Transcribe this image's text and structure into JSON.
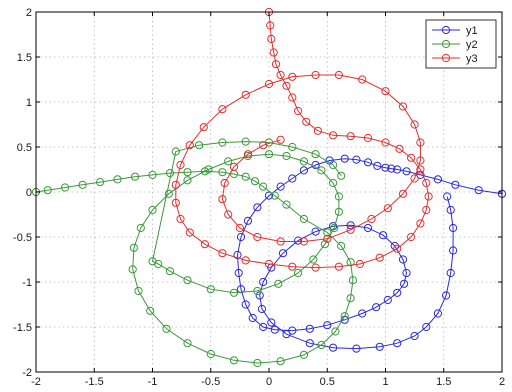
{
  "chart_data": {
    "type": "line",
    "title": "",
    "xlabel": "",
    "ylabel": "",
    "xlim": [
      -2,
      2
    ],
    "ylim": [
      -2,
      2
    ],
    "xticks": [
      -2,
      -1.5,
      -1,
      -0.5,
      0,
      0.5,
      1,
      1.5,
      2
    ],
    "yticks": [
      -2,
      -1.5,
      -1,
      -0.5,
      0,
      0.5,
      1,
      1.5,
      2
    ],
    "xtick_labels": [
      "-2",
      "-1.5",
      "-1",
      "-0.5",
      "0",
      "0.5",
      "1",
      "1.5",
      "2"
    ],
    "ytick_labels": [
      "-2",
      "-1.5",
      "-1",
      "-0.5",
      "0",
      "0.5",
      "1",
      "1.5",
      "2"
    ],
    "grid": true,
    "grid_style": "dotted",
    "legend_position": "top-right",
    "marker": "circle-open",
    "series": [
      {
        "name": "y1",
        "color": "#2b2bd6",
        "points": [
          [
            2.0,
            -0.02
          ],
          [
            1.8,
            0.02
          ],
          [
            1.6,
            0.08
          ],
          [
            1.45,
            0.14
          ],
          [
            1.3,
            0.19
          ],
          [
            1.18,
            0.23
          ],
          [
            1.1,
            0.25
          ],
          [
            1.05,
            0.26
          ],
          [
            1.0,
            0.27
          ],
          [
            0.93,
            0.29
          ],
          [
            0.85,
            0.33
          ],
          [
            0.75,
            0.36
          ],
          [
            0.65,
            0.37
          ],
          [
            0.52,
            0.35
          ],
          [
            0.4,
            0.3
          ],
          [
            0.3,
            0.24
          ],
          [
            0.2,
            0.15
          ],
          [
            0.1,
            0.06
          ],
          [
            0.0,
            -0.04
          ],
          [
            -0.1,
            -0.17
          ],
          [
            -0.18,
            -0.32
          ],
          [
            -0.24,
            -0.5
          ],
          [
            -0.27,
            -0.7
          ],
          [
            -0.26,
            -0.9
          ],
          [
            -0.24,
            -1.08
          ],
          [
            -0.2,
            -1.25
          ],
          [
            -0.14,
            -1.4
          ],
          [
            -0.05,
            -1.5
          ],
          [
            0.05,
            -1.53
          ],
          [
            0.2,
            -1.54
          ],
          [
            0.35,
            -1.52
          ],
          [
            0.5,
            -1.48
          ],
          [
            0.65,
            -1.42
          ],
          [
            0.8,
            -1.35
          ],
          [
            0.92,
            -1.28
          ],
          [
            1.02,
            -1.2
          ],
          [
            1.1,
            -1.12
          ],
          [
            1.16,
            -1.02
          ],
          [
            1.18,
            -0.9
          ],
          [
            1.15,
            -0.75
          ],
          [
            1.08,
            -0.6
          ],
          [
            0.98,
            -0.48
          ],
          [
            0.85,
            -0.4
          ],
          [
            0.7,
            -0.37
          ],
          [
            0.55,
            -0.38
          ],
          [
            0.4,
            -0.44
          ],
          [
            0.25,
            -0.54
          ],
          [
            0.12,
            -0.68
          ],
          [
            0.02,
            -0.84
          ],
          [
            -0.05,
            -1.0
          ],
          [
            -0.08,
            -1.15
          ],
          [
            -0.06,
            -1.3
          ],
          [
            0.02,
            -1.45
          ],
          [
            0.15,
            -1.58
          ],
          [
            0.35,
            -1.68
          ],
          [
            0.55,
            -1.73
          ],
          [
            0.75,
            -1.74
          ],
          [
            0.95,
            -1.72
          ],
          [
            1.1,
            -1.68
          ],
          [
            1.25,
            -1.6
          ],
          [
            1.35,
            -1.5
          ],
          [
            1.45,
            -1.35
          ],
          [
            1.52,
            -1.15
          ],
          [
            1.56,
            -0.9
          ],
          [
            1.58,
            -0.65
          ],
          [
            1.58,
            -0.4
          ],
          [
            1.56,
            -0.2
          ],
          [
            1.53,
            -0.05
          ]
        ]
      },
      {
        "name": "y2",
        "color": "#3a9a3a",
        "points": [
          [
            -2.0,
            0.0
          ],
          [
            -1.9,
            0.02
          ],
          [
            -1.75,
            0.05
          ],
          [
            -1.6,
            0.08
          ],
          [
            -1.45,
            0.11
          ],
          [
            -1.3,
            0.14
          ],
          [
            -1.15,
            0.17
          ],
          [
            -1.0,
            0.19
          ],
          [
            -0.85,
            0.21
          ],
          [
            -0.7,
            0.22
          ],
          [
            -0.55,
            0.23
          ],
          [
            -0.4,
            0.22
          ],
          [
            -0.3,
            0.2
          ],
          [
            -0.2,
            0.17
          ],
          [
            -0.12,
            0.12
          ],
          [
            -0.05,
            0.06
          ],
          [
            0.05,
            -0.04
          ],
          [
            0.15,
            -0.14
          ],
          [
            0.3,
            -0.3
          ],
          [
            0.5,
            -0.45
          ],
          [
            0.62,
            -0.6
          ],
          [
            0.7,
            -0.78
          ],
          [
            0.72,
            -0.98
          ],
          [
            0.7,
            -1.18
          ],
          [
            0.65,
            -1.38
          ],
          [
            0.57,
            -1.55
          ],
          [
            0.45,
            -1.7
          ],
          [
            0.3,
            -1.81
          ],
          [
            0.1,
            -1.88
          ],
          [
            -0.1,
            -1.9
          ],
          [
            -0.3,
            -1.87
          ],
          [
            -0.5,
            -1.8
          ],
          [
            -0.7,
            -1.68
          ],
          [
            -0.88,
            -1.52
          ],
          [
            -1.02,
            -1.32
          ],
          [
            -1.12,
            -1.1
          ],
          [
            -1.17,
            -0.86
          ],
          [
            -1.16,
            -0.62
          ],
          [
            -1.1,
            -0.4
          ],
          [
            -1.0,
            -0.2
          ],
          [
            -0.86,
            -0.02
          ],
          [
            -0.7,
            0.13
          ],
          [
            -0.52,
            0.25
          ],
          [
            -0.35,
            0.34
          ],
          [
            -0.18,
            0.4
          ],
          [
            0.0,
            0.42
          ],
          [
            0.15,
            0.4
          ],
          [
            0.3,
            0.34
          ],
          [
            0.45,
            0.24
          ],
          [
            0.55,
            0.1
          ],
          [
            0.6,
            -0.05
          ],
          [
            0.6,
            -0.22
          ],
          [
            0.56,
            -0.4
          ],
          [
            0.48,
            -0.58
          ],
          [
            0.38,
            -0.75
          ],
          [
            0.25,
            -0.9
          ],
          [
            0.08,
            -1.02
          ],
          [
            -0.1,
            -1.1
          ],
          [
            -0.3,
            -1.12
          ],
          [
            -0.5,
            -1.08
          ],
          [
            -0.7,
            -0.98
          ],
          [
            -0.85,
            -0.88
          ],
          [
            -0.95,
            -0.8
          ],
          [
            -1.0,
            -0.77
          ],
          [
            -0.8,
            0.45
          ],
          [
            -0.6,
            0.52
          ],
          [
            -0.4,
            0.55
          ],
          [
            -0.2,
            0.56
          ],
          [
            0.0,
            0.55
          ],
          [
            0.2,
            0.5
          ],
          [
            0.4,
            0.42
          ],
          [
            0.55,
            0.3
          ],
          [
            0.62,
            0.18
          ]
        ]
      },
      {
        "name": "y3",
        "color": "#e03030",
        "points": [
          [
            0.0,
            2.0
          ],
          [
            0.01,
            1.85
          ],
          [
            0.02,
            1.7
          ],
          [
            0.04,
            1.55
          ],
          [
            0.06,
            1.42
          ],
          [
            0.1,
            1.3
          ],
          [
            0.15,
            1.18
          ],
          [
            0.2,
            1.05
          ],
          [
            0.25,
            0.9
          ],
          [
            0.32,
            0.78
          ],
          [
            0.42,
            0.68
          ],
          [
            0.55,
            0.63
          ],
          [
            0.7,
            0.62
          ],
          [
            0.85,
            0.6
          ],
          [
            1.0,
            0.55
          ],
          [
            1.12,
            0.48
          ],
          [
            1.22,
            0.38
          ],
          [
            1.3,
            0.25
          ],
          [
            1.35,
            0.1
          ],
          [
            1.37,
            -0.05
          ],
          [
            1.35,
            -0.2
          ],
          [
            1.3,
            -0.35
          ],
          [
            1.22,
            -0.5
          ],
          [
            1.1,
            -0.63
          ],
          [
            0.95,
            -0.73
          ],
          [
            0.78,
            -0.8
          ],
          [
            0.6,
            -0.83
          ],
          [
            0.4,
            -0.84
          ],
          [
            0.2,
            -0.83
          ],
          [
            0.0,
            -0.8
          ],
          [
            -0.2,
            -0.76
          ],
          [
            -0.4,
            -0.68
          ],
          [
            -0.55,
            -0.58
          ],
          [
            -0.68,
            -0.45
          ],
          [
            -0.76,
            -0.3
          ],
          [
            -0.8,
            -0.12
          ],
          [
            -0.8,
            0.08
          ],
          [
            -0.76,
            0.3
          ],
          [
            -0.68,
            0.52
          ],
          [
            -0.56,
            0.72
          ],
          [
            -0.4,
            0.92
          ],
          [
            -0.2,
            1.08
          ],
          [
            0.0,
            1.2
          ],
          [
            0.2,
            1.28
          ],
          [
            0.4,
            1.3
          ],
          [
            0.6,
            1.3
          ],
          [
            0.8,
            1.25
          ],
          [
            1.0,
            1.12
          ],
          [
            1.15,
            0.95
          ],
          [
            1.25,
            0.75
          ],
          [
            1.3,
            0.55
          ],
          [
            1.3,
            0.35
          ],
          [
            1.25,
            0.15
          ],
          [
            1.15,
            -0.02
          ],
          [
            1.02,
            -0.18
          ],
          [
            0.88,
            -0.3
          ],
          [
            0.7,
            -0.42
          ],
          [
            0.5,
            -0.52
          ],
          [
            0.3,
            -0.55
          ],
          [
            0.1,
            -0.55
          ],
          [
            -0.1,
            -0.5
          ],
          [
            -0.25,
            -0.4
          ],
          [
            -0.35,
            -0.25
          ],
          [
            -0.4,
            -0.08
          ],
          [
            -0.38,
            0.1
          ],
          [
            -0.3,
            0.28
          ],
          [
            -0.18,
            0.42
          ],
          [
            -0.05,
            0.52
          ],
          [
            0.1,
            0.58
          ]
        ]
      }
    ]
  }
}
